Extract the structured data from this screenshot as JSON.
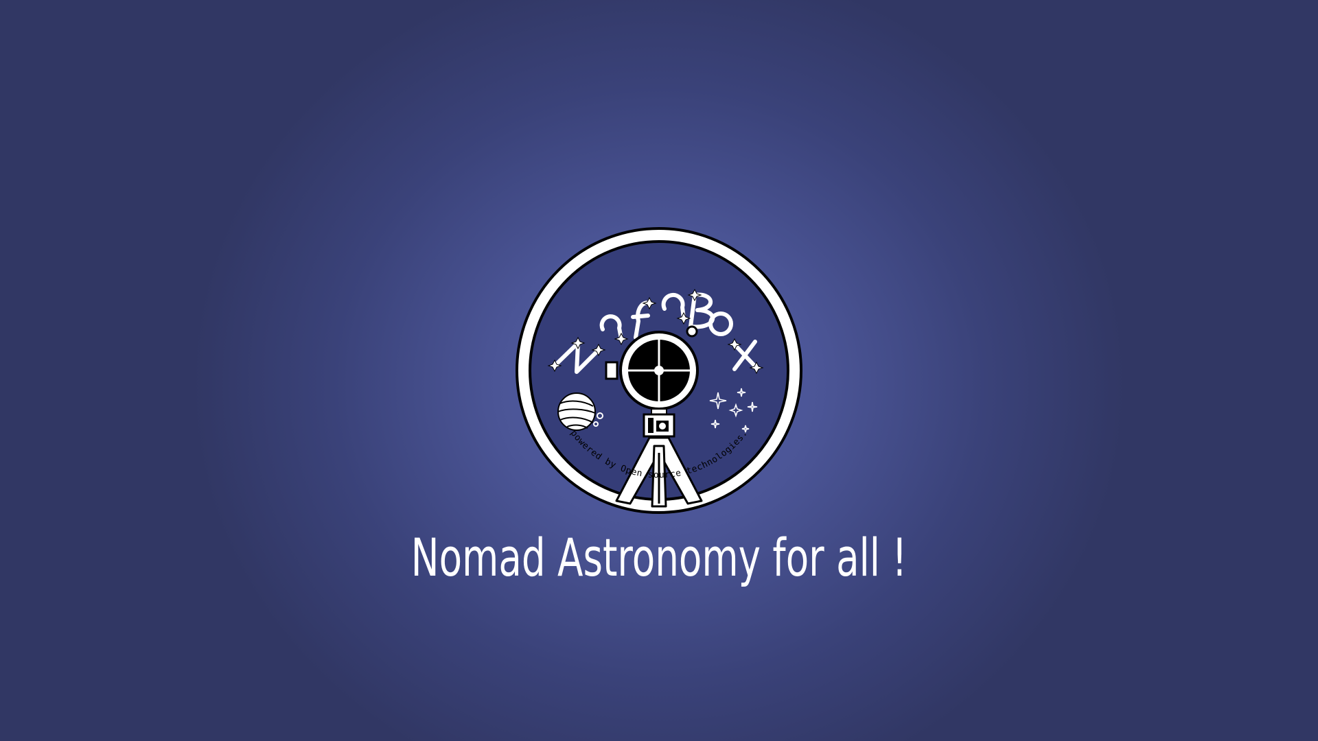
{
  "wallpaper": {
    "logo": {
      "name": "NafaBox",
      "motto": "powered by Open source technologies."
    },
    "tagline": "Nomad Astronomy for all !",
    "colors": {
      "background_center": "#5661a8",
      "background_edge": "#313764",
      "badge_fill": "#353d78",
      "badge_ring": "#ffffff",
      "outline": "#000000",
      "text": "#ffffff"
    }
  }
}
